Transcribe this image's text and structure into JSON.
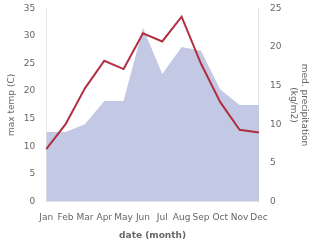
{
  "chart_data": {
    "type": "line",
    "xlabel": "date (month)",
    "ylabel": "max temp (C)",
    "y2label": "med. precipitation\n(kg/m2)",
    "categories": [
      "Jan",
      "Feb",
      "Mar",
      "Apr",
      "May",
      "Jun",
      "Jul",
      "Aug",
      "Sep",
      "Oct",
      "Nov",
      "Dec"
    ],
    "series": [
      {
        "type": "area",
        "axis": "y2",
        "color": "#b8c0e0",
        "values": [
          9.0,
          9.0,
          10.0,
          13.0,
          13.0,
          22.5,
          16.5,
          20.0,
          19.5,
          14.5,
          12.5,
          12.5
        ]
      },
      {
        "type": "line",
        "axis": "y",
        "color": "#b03040",
        "values": [
          9.5,
          14.0,
          20.5,
          25.5,
          24.0,
          30.5,
          29.0,
          33.5,
          25.0,
          18.0,
          13.0,
          12.5
        ]
      }
    ],
    "ylim": [
      0,
      35
    ],
    "yticks": [
      0,
      5,
      10,
      15,
      20,
      25,
      30,
      35
    ],
    "y2lim": [
      0,
      25
    ],
    "y2ticks": [
      0,
      5,
      10,
      15,
      20,
      25
    ],
    "grid": false
  }
}
